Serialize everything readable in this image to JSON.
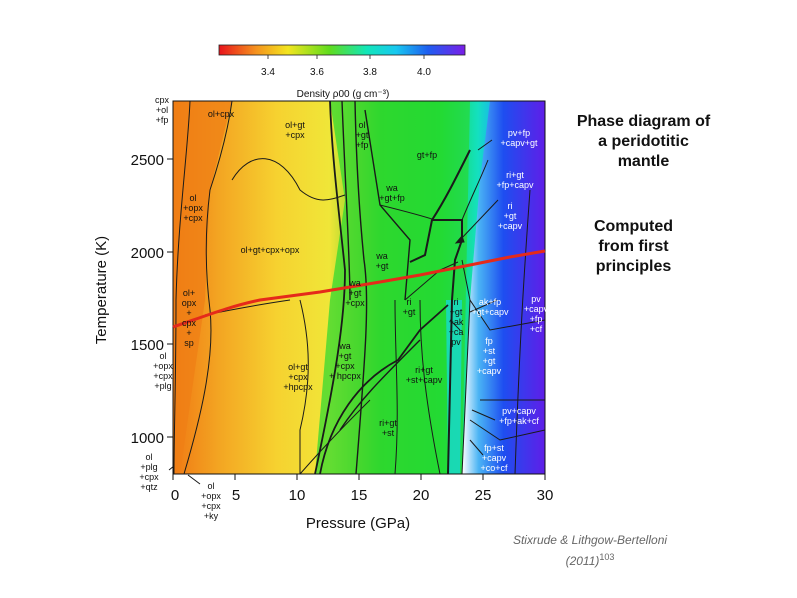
{
  "slide": {
    "title_lines": [
      "Phase diagram of",
      "a peridotitic",
      "mantle"
    ],
    "subtitle_lines": [
      "Computed",
      "from first",
      "principles"
    ],
    "citation_line1": "Stixrude & Lithgow-Bertelloni",
    "citation_line2": "(2011)",
    "citation_ref": "103"
  },
  "colorbar": {
    "label": "Density ρ00 (g cm⁻³)",
    "ticks": [
      "3.4",
      "3.6",
      "3.8",
      "4.0"
    ]
  },
  "axes": {
    "xlabel": "Pressure (GPa)",
    "ylabel": "Temperature (K)",
    "xticks": [
      "0",
      "5",
      "10",
      "15",
      "20",
      "25",
      "30"
    ],
    "yticks": [
      "1000",
      "1500",
      "2000",
      "2500"
    ]
  },
  "colors": {
    "geotherm": "#e52a1a",
    "boundary": "#1a1a1a"
  },
  "phase_labels": {
    "cpx_ol_fp": [
      "cpx",
      "+ol",
      "+fp"
    ],
    "ol_cpx": [
      "ol+cpx"
    ],
    "ol_gt_cpx_top": [
      "ol+gt",
      "+cpx"
    ],
    "ol_gt_fp": [
      "ol",
      "+gt",
      "+fp"
    ],
    "gt_fp": [
      "gt+fp"
    ],
    "pv_fp_capv_gt": [
      "pv+fp",
      "+capv+gt"
    ],
    "ri_gt_fp_capv": [
      "ri+gt",
      "+fp+capv"
    ],
    "ri_gt_capv": [
      "ri",
      "+gt",
      "+capv"
    ],
    "ol_opx_cpx": [
      "ol",
      "+opx",
      "+cpx"
    ],
    "wa_gt_fp": [
      "wa",
      "+gt+fp"
    ],
    "ol_gt_cpx_opx": [
      "ol+gt+cpx+opx"
    ],
    "wa_gt": [
      "wa",
      "+gt"
    ],
    "wa_gt_cpx": [
      "wa",
      "+gt",
      "+cpx"
    ],
    "ri_gt": [
      "ri",
      "+gt"
    ],
    "ri_gt_ak_ca_pv": [
      "ri",
      "+gt",
      "+ak",
      "+ca",
      "pv"
    ],
    "ak_fp_gt_capv": [
      "ak+fp",
      "+gt+capv"
    ],
    "pv_capv_fp_cf": [
      "pv",
      "+capv",
      "+fp",
      "+cf"
    ],
    "ol_opx_cpx_sp": [
      "ol+",
      "opx",
      "+",
      "cpx",
      "+",
      "sp"
    ],
    "ol_opx_cpx_plg": [
      "ol",
      "+opx",
      "+cpx",
      "+plg"
    ],
    "ol_gt_cpx_hpcpx": [
      "ol+gt",
      "+cpx",
      "+hpcpx"
    ],
    "wa_gt_cpx_hpcpx": [
      "wa",
      "+gt",
      "+cpx",
      "+ hpcpx"
    ],
    "fp_st_gt_capv": [
      "fp",
      "+st",
      "+gt",
      "+capv"
    ],
    "ri_gt_st_capv": [
      "ri+gt",
      "+st+capv"
    ],
    "pv_capv_fp_ak_cf": [
      "pv+capv",
      "+fp+ak+cf"
    ],
    "ri_gt_st": [
      "ri+gt",
      "+st"
    ],
    "fp_st_capv_co_cf": [
      "fp+st",
      "+capv",
      "+co+cf"
    ],
    "ol_plg_cpx_qtz": [
      "ol",
      "+plg",
      "+cpx",
      "+qtz"
    ],
    "ol_opx_cpx_ky": [
      "ol",
      "+opx",
      "+cpx",
      "+ky"
    ]
  }
}
